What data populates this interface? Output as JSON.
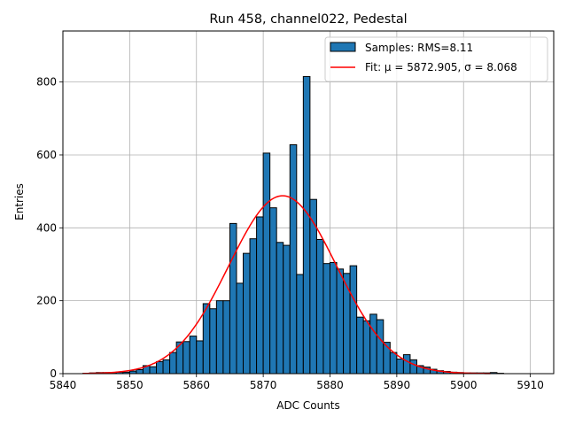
{
  "chart_data": {
    "type": "bar",
    "title": "Run 458, channel022, Pedestal",
    "xlabel": "ADC Counts",
    "ylabel": "Entries",
    "xlim": [
      5840,
      5913.5
    ],
    "ylim": [
      0,
      940
    ],
    "grid": true,
    "legend_position": "top-right",
    "x_ticks": [
      5840,
      5850,
      5860,
      5870,
      5880,
      5890,
      5900,
      5910
    ],
    "y_ticks": [
      0,
      200,
      400,
      600,
      800
    ],
    "bin_width": 1,
    "bin_start": 5843,
    "bar_color": "#1f77b4",
    "counts": [
      1,
      2,
      3,
      3,
      3,
      4,
      4,
      7,
      11,
      22,
      19,
      33,
      38,
      58,
      87,
      88,
      103,
      90,
      192,
      178,
      200,
      200,
      412,
      248,
      330,
      370,
      430,
      605,
      455,
      360,
      352,
      628,
      272,
      815,
      478,
      368,
      302,
      305,
      287,
      275,
      296,
      155,
      145,
      163,
      148,
      86,
      58,
      40,
      52,
      38,
      22,
      18,
      12,
      8,
      6,
      4,
      3,
      2,
      2,
      2,
      2,
      3,
      1
    ],
    "series": [
      {
        "name": "Samples: RMS=8.11",
        "type": "histogram",
        "color": "#1f77b4"
      },
      {
        "name": "Fit: μ = 5872.905, σ = 8.068",
        "type": "line",
        "color": "#ff0000",
        "mu": 5872.905,
        "sigma": 8.068,
        "amplitude": 488,
        "x_range": [
          5843,
          5904
        ]
      }
    ]
  }
}
